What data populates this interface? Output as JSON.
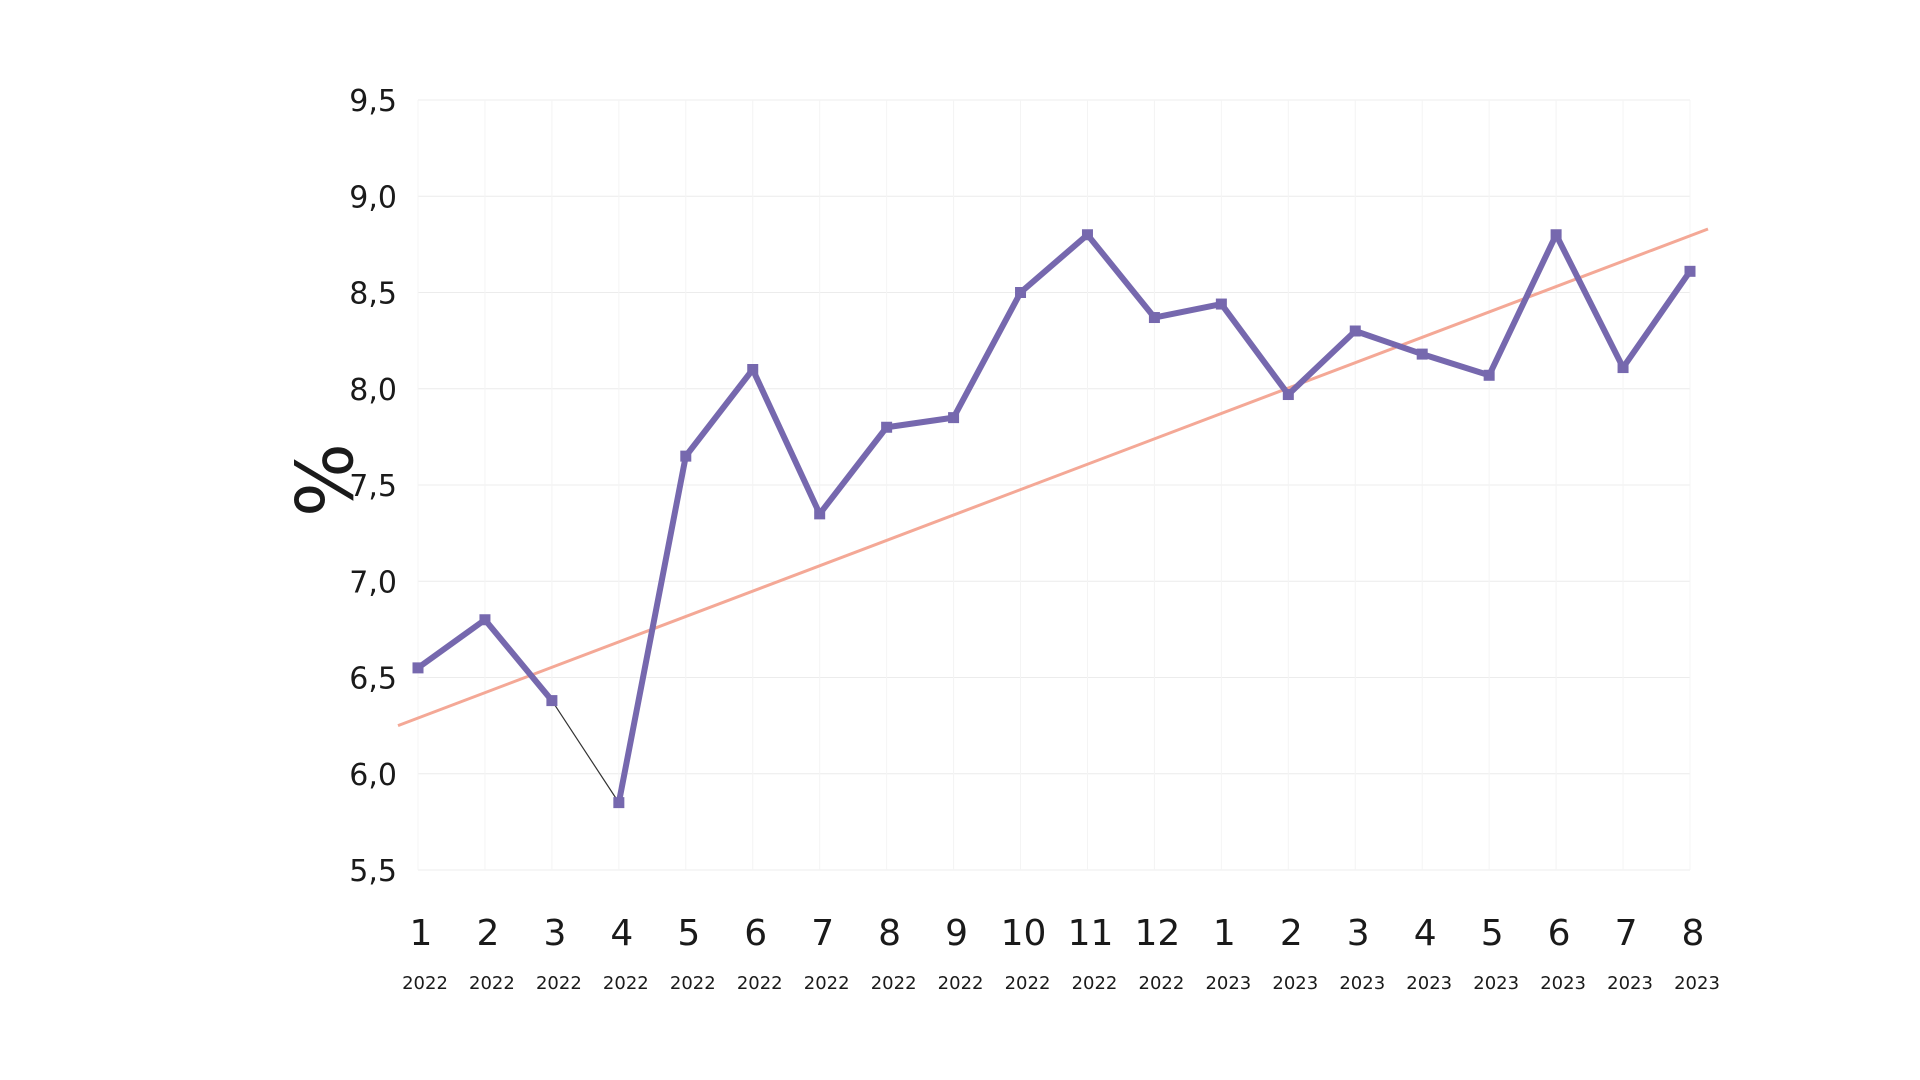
{
  "chart_data": {
    "type": "line",
    "ylabel": "%",
    "ylim": [
      5.5,
      9.5
    ],
    "yticks": [
      "9,5",
      "9,0",
      "8,5",
      "8,0",
      "7,5",
      "7,0",
      "6,5",
      "6,0",
      "5,5"
    ],
    "ytick_values": [
      9.5,
      9.0,
      8.5,
      8.0,
      7.5,
      7.0,
      6.5,
      6.0,
      5.5
    ],
    "categories": [
      {
        "month": "1",
        "year": "2022"
      },
      {
        "month": "2",
        "year": "2022"
      },
      {
        "month": "3",
        "year": "2022"
      },
      {
        "month": "4",
        "year": "2022"
      },
      {
        "month": "5",
        "year": "2022"
      },
      {
        "month": "6",
        "year": "2022"
      },
      {
        "month": "7",
        "year": "2022"
      },
      {
        "month": "8",
        "year": "2022"
      },
      {
        "month": "9",
        "year": "2022"
      },
      {
        "month": "10",
        "year": "2022"
      },
      {
        "month": "11",
        "year": "2022"
      },
      {
        "month": "12",
        "year": "2022"
      },
      {
        "month": "1",
        "year": "2023"
      },
      {
        "month": "2",
        "year": "2023"
      },
      {
        "month": "3",
        "year": "2023"
      },
      {
        "month": "4",
        "year": "2023"
      },
      {
        "month": "5",
        "year": "2023"
      },
      {
        "month": "6",
        "year": "2023"
      },
      {
        "month": "7",
        "year": "2023"
      },
      {
        "month": "8",
        "year": "2023"
      }
    ],
    "series": [
      {
        "values": [
          6.55,
          6.8,
          6.38,
          5.85,
          7.65,
          8.1,
          7.35,
          7.8,
          7.85,
          8.5,
          8.8,
          8.37,
          8.44,
          7.97,
          8.3,
          8.18,
          8.07,
          8.8,
          8.11,
          8.61
        ],
        "color": "#7668ae"
      }
    ],
    "trendline": {
      "start_value": 6.25,
      "end_value": 8.83,
      "color": "#f4a896"
    },
    "connector_color": "#333333",
    "grid": true,
    "grid_color": "#ececec"
  }
}
